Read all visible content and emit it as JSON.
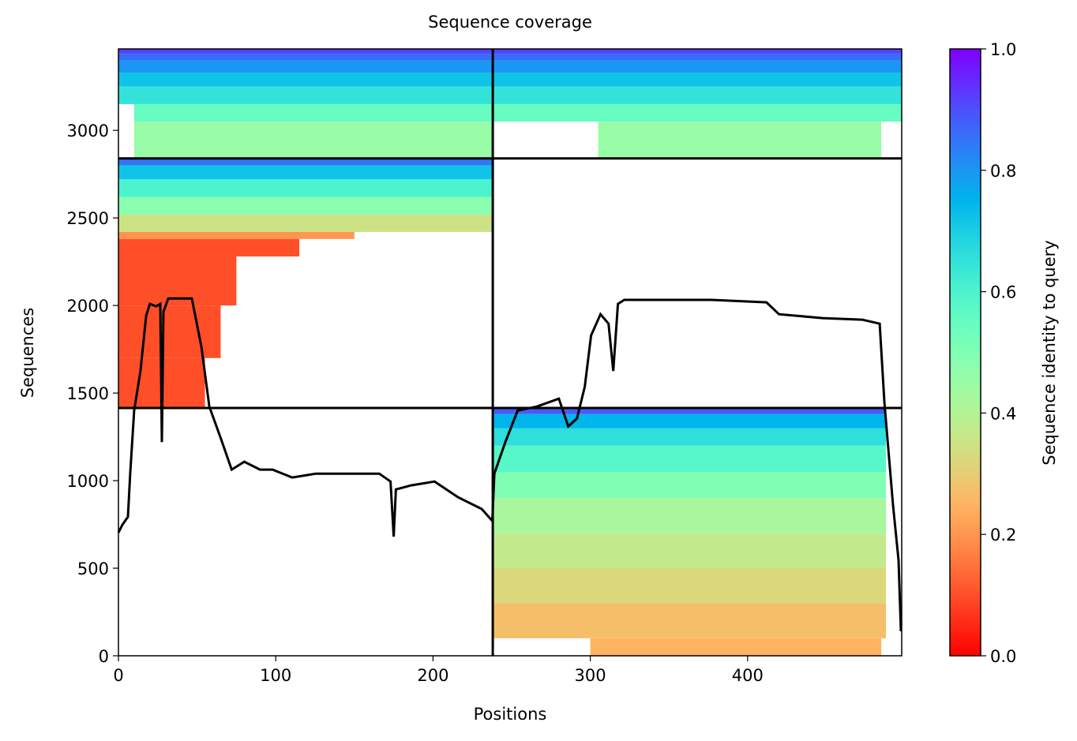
{
  "chart_data": {
    "type": "coverage",
    "title": "Sequence coverage",
    "xlabel": "Positions",
    "ylabel": "Sequences",
    "colorbar_label": "Sequence identity to query",
    "colormap": "rainbow_r",
    "xlim": [
      0,
      498
    ],
    "ylim": [
      0,
      3465
    ],
    "xticks": [
      0,
      100,
      200,
      300,
      400
    ],
    "yticks": [
      0,
      500,
      1000,
      1500,
      2000,
      2500,
      3000
    ],
    "clim": [
      0,
      1
    ],
    "cticks": [
      {
        "value": 0,
        "label": "0.0"
      },
      {
        "value": 0.2,
        "label": "0.2"
      },
      {
        "value": 0.4,
        "label": "0.4"
      },
      {
        "value": 0.6,
        "label": "0.6"
      },
      {
        "value": 0.8,
        "label": "0.8"
      },
      {
        "value": 1,
        "label": "1.0"
      }
    ],
    "dividers": {
      "x": [
        238
      ],
      "y": [
        1415,
        2840
      ]
    },
    "blocks": [
      {
        "x": [
          10,
          238
        ],
        "y": [
          2845,
          3050
        ],
        "identity": 0.45
      },
      {
        "x": [
          305,
          485
        ],
        "y": [
          2845,
          3050
        ],
        "identity": 0.45
      },
      {
        "x": [
          10,
          498
        ],
        "y": [
          3050,
          3150
        ],
        "identity": 0.55
      },
      {
        "x": [
          0,
          498
        ],
        "y": [
          3150,
          3250
        ],
        "identity": 0.65
      },
      {
        "x": [
          0,
          498
        ],
        "y": [
          3250,
          3330
        ],
        "identity": 0.72
      },
      {
        "x": [
          0,
          498
        ],
        "y": [
          3330,
          3400
        ],
        "identity": 0.8
      },
      {
        "x": [
          0,
          498
        ],
        "y": [
          3400,
          3440
        ],
        "identity": 0.86
      },
      {
        "x": [
          0,
          498
        ],
        "y": [
          3440,
          3465
        ],
        "identity": 0.92
      },
      {
        "x": [
          0,
          238
        ],
        "y": [
          2800,
          2840
        ],
        "identity": 0.85
      },
      {
        "x": [
          0,
          238
        ],
        "y": [
          2720,
          2800
        ],
        "identity": 0.72
      },
      {
        "x": [
          0,
          238
        ],
        "y": [
          2620,
          2720
        ],
        "identity": 0.6
      },
      {
        "x": [
          0,
          238
        ],
        "y": [
          2520,
          2620
        ],
        "identity": 0.48
      },
      {
        "x": [
          0,
          238
        ],
        "y": [
          2420,
          2520
        ],
        "identity": 0.35
      },
      {
        "x": [
          0,
          150
        ],
        "y": [
          2380,
          2420
        ],
        "identity": 0.2
      },
      {
        "x": [
          0,
          115
        ],
        "y": [
          2280,
          2380
        ],
        "identity": 0.1
      },
      {
        "x": [
          0,
          75
        ],
        "y": [
          2000,
          2280
        ],
        "identity": 0.1
      },
      {
        "x": [
          0,
          65
        ],
        "y": [
          1700,
          2000
        ],
        "identity": 0.1
      },
      {
        "x": [
          0,
          55
        ],
        "y": [
          1415,
          1700
        ],
        "identity": 0.1
      },
      {
        "x": [
          300,
          485
        ],
        "y": [
          0,
          100
        ],
        "identity": 0.25
      },
      {
        "x": [
          238,
          488
        ],
        "y": [
          100,
          300
        ],
        "identity": 0.27
      },
      {
        "x": [
          238,
          488
        ],
        "y": [
          300,
          500
        ],
        "identity": 0.32
      },
      {
        "x": [
          238,
          488
        ],
        "y": [
          500,
          700
        ],
        "identity": 0.37
      },
      {
        "x": [
          238,
          488
        ],
        "y": [
          700,
          900
        ],
        "identity": 0.42
      },
      {
        "x": [
          238,
          488
        ],
        "y": [
          900,
          1050
        ],
        "identity": 0.5
      },
      {
        "x": [
          238,
          488
        ],
        "y": [
          1050,
          1200
        ],
        "identity": 0.58
      },
      {
        "x": [
          238,
          488
        ],
        "y": [
          1200,
          1300
        ],
        "identity": 0.66
      },
      {
        "x": [
          238,
          488
        ],
        "y": [
          1300,
          1380
        ],
        "identity": 0.75
      },
      {
        "x": [
          238,
          488
        ],
        "y": [
          1380,
          1415
        ],
        "identity": 0.88
      }
    ],
    "coverage": {
      "color": "#000000",
      "x": [
        0,
        2.5,
        6,
        7.5,
        10,
        14,
        17.6,
        20,
        24,
        26.6,
        27.6,
        28.6,
        31.7,
        46.7,
        52.8,
        57.8,
        65,
        72,
        80,
        90,
        98,
        110.5,
        125.6,
        165.8,
        173,
        175,
        176.4,
        186,
        201,
        216,
        231,
        237.7,
        239,
        246,
        253.8,
        266,
        280,
        286,
        291.5,
        296.5,
        300.5,
        306.5,
        311.6,
        314.6,
        317.6,
        321.6,
        377,
        412,
        420,
        447.7,
        472.9,
        484,
        487,
        492.5,
        496,
        497.5
      ],
      "values": [
        703,
        748,
        793,
        1040,
        1400,
        1626,
        1941,
        2009,
        1995,
        2009,
        1220,
        1964,
        2040,
        2040,
        1761,
        1423,
        1243,
        1063,
        1108,
        1063,
        1063,
        1018,
        1040,
        1040,
        995,
        680,
        950,
        973,
        995,
        905,
        838,
        770,
        1040,
        1220,
        1400,
        1423,
        1468,
        1310,
        1355,
        1536,
        1829,
        1950,
        1896,
        1626,
        2009,
        2032,
        2032,
        2018,
        1950,
        1928,
        1919,
        1896,
        1446,
        860,
        545,
        140
      ]
    }
  }
}
